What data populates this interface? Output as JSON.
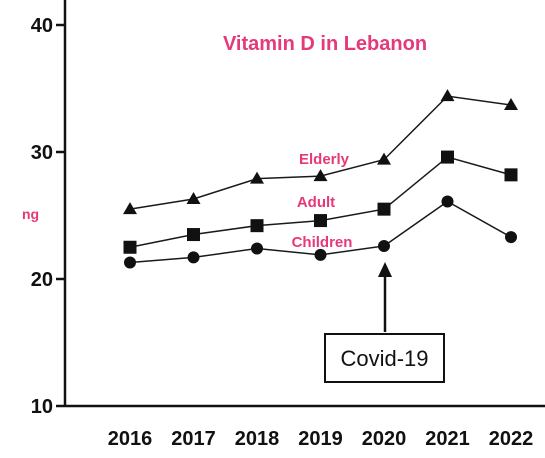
{
  "chart_data": {
    "type": "line",
    "title": "Vitamin D in Lebanon",
    "ylabel": "ng",
    "xlabel": "",
    "ylim": [
      10,
      42
    ],
    "yticks": [
      10,
      20,
      30,
      40
    ],
    "categories": [
      "2016",
      "2017",
      "2018",
      "2019",
      "2020",
      "2021",
      "2022"
    ],
    "series": [
      {
        "name": "Elderly",
        "marker": "triangle",
        "values": [
          25.5,
          26.3,
          27.9,
          28.1,
          29.4,
          34.4,
          33.7
        ]
      },
      {
        "name": "Adult",
        "marker": "square",
        "values": [
          22.5,
          23.5,
          24.2,
          24.6,
          25.5,
          29.6,
          28.2
        ]
      },
      {
        "name": "Children",
        "marker": "circle",
        "values": [
          21.3,
          21.7,
          22.4,
          21.9,
          22.6,
          26.1,
          23.3
        ]
      }
    ],
    "annotation": {
      "text": "Covid-19",
      "category": "2020"
    },
    "grid": false,
    "colors": {
      "line": "#1a1a1a",
      "title": "#e6397a",
      "labels": "#e6397a",
      "axis": "#111111"
    }
  }
}
